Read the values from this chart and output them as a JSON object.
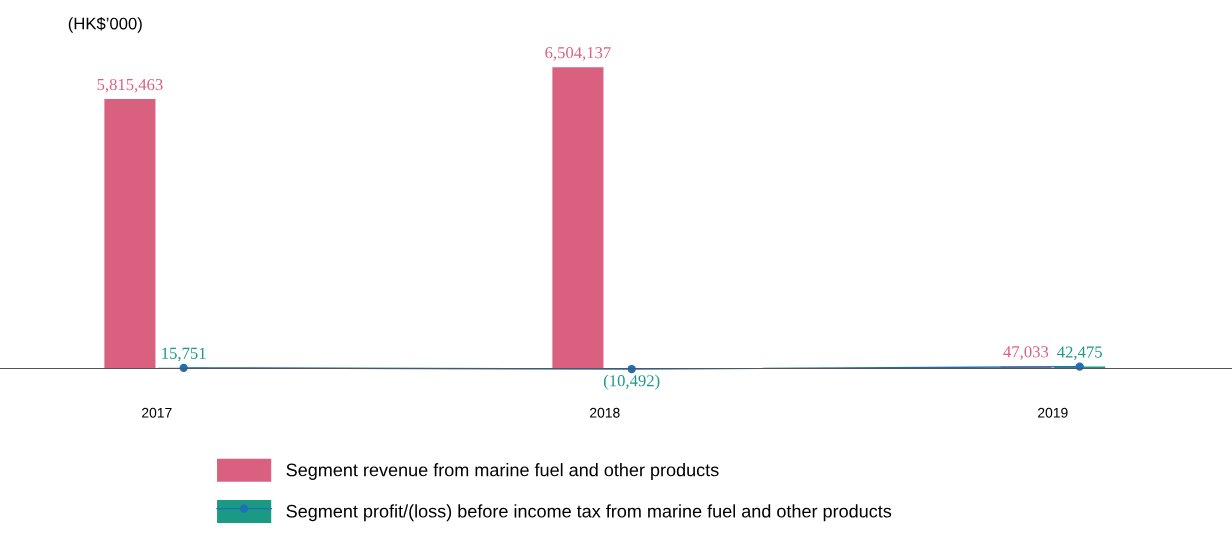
{
  "chart_data": {
    "type": "bar",
    "ylabel": "(HK$’000)",
    "categories": [
      "2017",
      "2018",
      "2019"
    ],
    "series": [
      {
        "name": "Segment revenue from marine fuel and other products",
        "color": "#d9607f",
        "values": [
          5815463,
          6504137,
          47033
        ],
        "value_labels": [
          "5,815,463",
          "6,504,137",
          "47,033"
        ]
      },
      {
        "name": "Segment profit/(loss) before income tax from marine fuel and other products",
        "color": "#1a9a85",
        "values": [
          15751,
          -10492,
          42475
        ],
        "value_labels": [
          "15,751",
          "(10,492)",
          "42,475"
        ]
      },
      {
        "type": "line",
        "color": "#1f6fb5",
        "values": [
          15751,
          -10492,
          42475
        ],
        "marker": "circle"
      }
    ],
    "legend": "bottom"
  }
}
